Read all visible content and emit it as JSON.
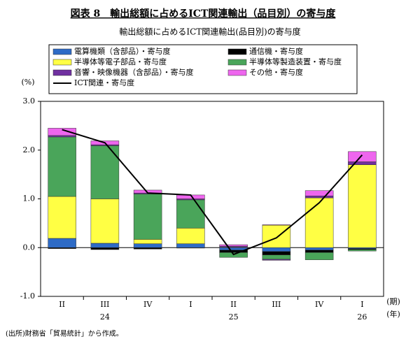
{
  "chart_data": {
    "type": "stacked_bar_line",
    "title": "図表 8　輸出総額に占めるICT関連輸出（品目別）の寄与度",
    "subtitle": "輸出総額に占めるICT関連輸出(品目別)の寄与度",
    "y_unit": "(%)",
    "x_unit": "(期)",
    "x_group_unit": "(年)",
    "source": "(出所)財務省「貿易統計」から作成。",
    "categories": [
      "II",
      "III",
      "IV",
      "I",
      "II",
      "III",
      "IV",
      "I"
    ],
    "category_groups": [
      null,
      "24",
      null,
      null,
      "25",
      null,
      null,
      "26"
    ],
    "series": [
      {
        "name": "電算機類（含部品）・寄与度",
        "color": "#2e6bc6",
        "values": [
          0.19,
          0.09,
          0.08,
          0.08,
          -0.05,
          -0.08,
          -0.05,
          -0.02
        ]
      },
      {
        "name": "通信機・寄与度",
        "color": "#000000",
        "values": [
          -0.02,
          -0.04,
          -0.03,
          -0.01,
          -0.05,
          -0.07,
          -0.05,
          -0.02
        ]
      },
      {
        "name": "半導体等電子部品・寄与度",
        "color": "#ffff44",
        "values": [
          0.86,
          0.91,
          0.09,
          0.32,
          0.01,
          0.46,
          1.02,
          1.7
        ]
      },
      {
        "name": "半導体等製造装置・寄与度",
        "color": "#4aa55a",
        "values": [
          1.22,
          1.09,
          0.93,
          0.58,
          -0.1,
          -0.09,
          -0.15,
          -0.03
        ]
      },
      {
        "name": "音響・映像機器（含部品）・寄与度",
        "color": "#7030a0",
        "values": [
          0.03,
          0.02,
          0.02,
          0.02,
          0.02,
          -0.02,
          0.04,
          0.06
        ]
      },
      {
        "name": "その他・寄与度",
        "color": "#ee66ee",
        "values": [
          0.15,
          0.08,
          0.06,
          0.08,
          0.03,
          0.01,
          0.11,
          0.21
        ]
      }
    ],
    "line": {
      "name": "ICT関連・寄与度",
      "color": "#000000",
      "values": [
        2.42,
        2.15,
        1.12,
        1.08,
        -0.14,
        0.2,
        0.92,
        1.9
      ]
    },
    "ylim": [
      -1,
      3
    ],
    "yticks": [
      {
        "value": -1,
        "label": "-1.0"
      },
      {
        "value": 0,
        "label": "0.0"
      },
      {
        "value": 1,
        "label": "1.0"
      },
      {
        "value": 2,
        "label": "2.0"
      },
      {
        "value": 3,
        "label": "3.0"
      }
    ]
  }
}
